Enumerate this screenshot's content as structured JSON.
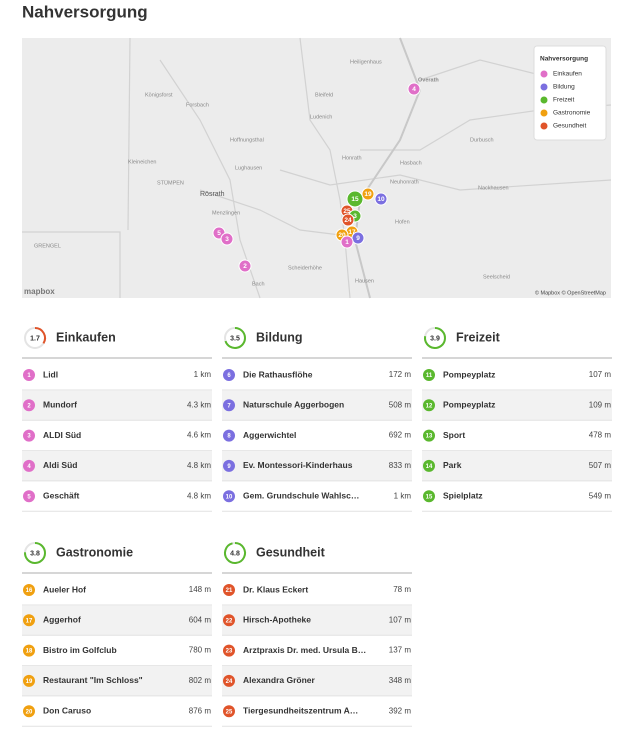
{
  "header": {
    "title": "Nahversorgung"
  },
  "map": {
    "labels": [
      "Overath",
      "Königsforst",
      "Forsbach",
      "Hoffnungsthal",
      "Lughausen",
      "Kleineichen",
      "STÜMPEN",
      "Rösrath",
      "Menzlingen",
      "Heiligenhaus",
      "Bleifeld",
      "Ludenich",
      "Honrath",
      "Hasbach",
      "Neuhonrath",
      "Hofen",
      "Hausen",
      "Scheiderhöhe",
      "Bach",
      "Durbusch",
      "Nackhausen",
      "Seelscheid",
      "GRENGEL"
    ],
    "markers": [
      "4",
      "5",
      "3",
      "2",
      "15",
      "19",
      "10",
      "25",
      "3",
      "24",
      "17",
      "20",
      "9",
      "1"
    ],
    "legend_title": "Nahversorgung",
    "attribution": "© Mapbox © OpenStreetMap",
    "logo": "mapbox"
  },
  "categories": [
    {
      "name": "Einkaufen",
      "score": 1.7,
      "color": "#e06fc8",
      "items": [
        {
          "num": "1",
          "name": "Lidl",
          "distance": "1 km"
        },
        {
          "num": "2",
          "name": "Mundorf",
          "distance": "4.3 km"
        },
        {
          "num": "3",
          "name": "ALDI Süd",
          "distance": "4.6 km"
        },
        {
          "num": "4",
          "name": "Aldi Süd",
          "distance": "4.8 km"
        },
        {
          "num": "5",
          "name": "Geschäft",
          "distance": "4.8 km"
        }
      ]
    },
    {
      "name": "Bildung",
      "score": 3.5,
      "color": "#7b6fe0",
      "items": [
        {
          "num": "6",
          "name": "Die Rathausflöhe",
          "distance": "172 m"
        },
        {
          "num": "7",
          "name": "Naturschule Aggerbogen",
          "distance": "508 m"
        },
        {
          "num": "8",
          "name": "Aggerwichtel",
          "distance": "692 m"
        },
        {
          "num": "9",
          "name": "Ev. Montessori-Kinderhaus",
          "distance": "833 m"
        },
        {
          "num": "10",
          "name": "Gem. Grundschule Wahlsc…",
          "distance": "1 km"
        }
      ]
    },
    {
      "name": "Freizeit",
      "score": 3.9,
      "color": "#5ab82e",
      "items": [
        {
          "num": "11",
          "name": "Pompeyplatz",
          "distance": "107 m"
        },
        {
          "num": "12",
          "name": "Pompeyplatz",
          "distance": "109 m"
        },
        {
          "num": "13",
          "name": "Sport",
          "distance": "478 m"
        },
        {
          "num": "14",
          "name": "Park",
          "distance": "507 m"
        },
        {
          "num": "15",
          "name": "Spielplatz",
          "distance": "549 m"
        }
      ]
    },
    {
      "name": "Gastronomie",
      "score": 3.8,
      "color": "#f0a010",
      "items": [
        {
          "num": "16",
          "name": "Aueler Hof",
          "distance": "148 m"
        },
        {
          "num": "17",
          "name": "Aggerhof",
          "distance": "604 m"
        },
        {
          "num": "18",
          "name": "Bistro im Golfclub",
          "distance": "780 m"
        },
        {
          "num": "19",
          "name": "Restaurant \"Im Schloss\"",
          "distance": "802 m"
        },
        {
          "num": "20",
          "name": "Don Caruso",
          "distance": "876 m"
        }
      ]
    },
    {
      "name": "Gesundheit",
      "score": 4.8,
      "color": "#e0542a",
      "items": [
        {
          "num": "21",
          "name": "Dr. Klaus Eckert",
          "distance": "78 m"
        },
        {
          "num": "22",
          "name": "Hirsch-Apotheke",
          "distance": "107 m"
        },
        {
          "num": "23",
          "name": "Arztpraxis Dr. med. Ursula B…",
          "distance": "137 m"
        },
        {
          "num": "24",
          "name": "Alexandra Gröner",
          "distance": "348 m"
        },
        {
          "num": "25",
          "name": "Tiergesundheitszentrum A…",
          "distance": "392 m"
        }
      ]
    }
  ]
}
